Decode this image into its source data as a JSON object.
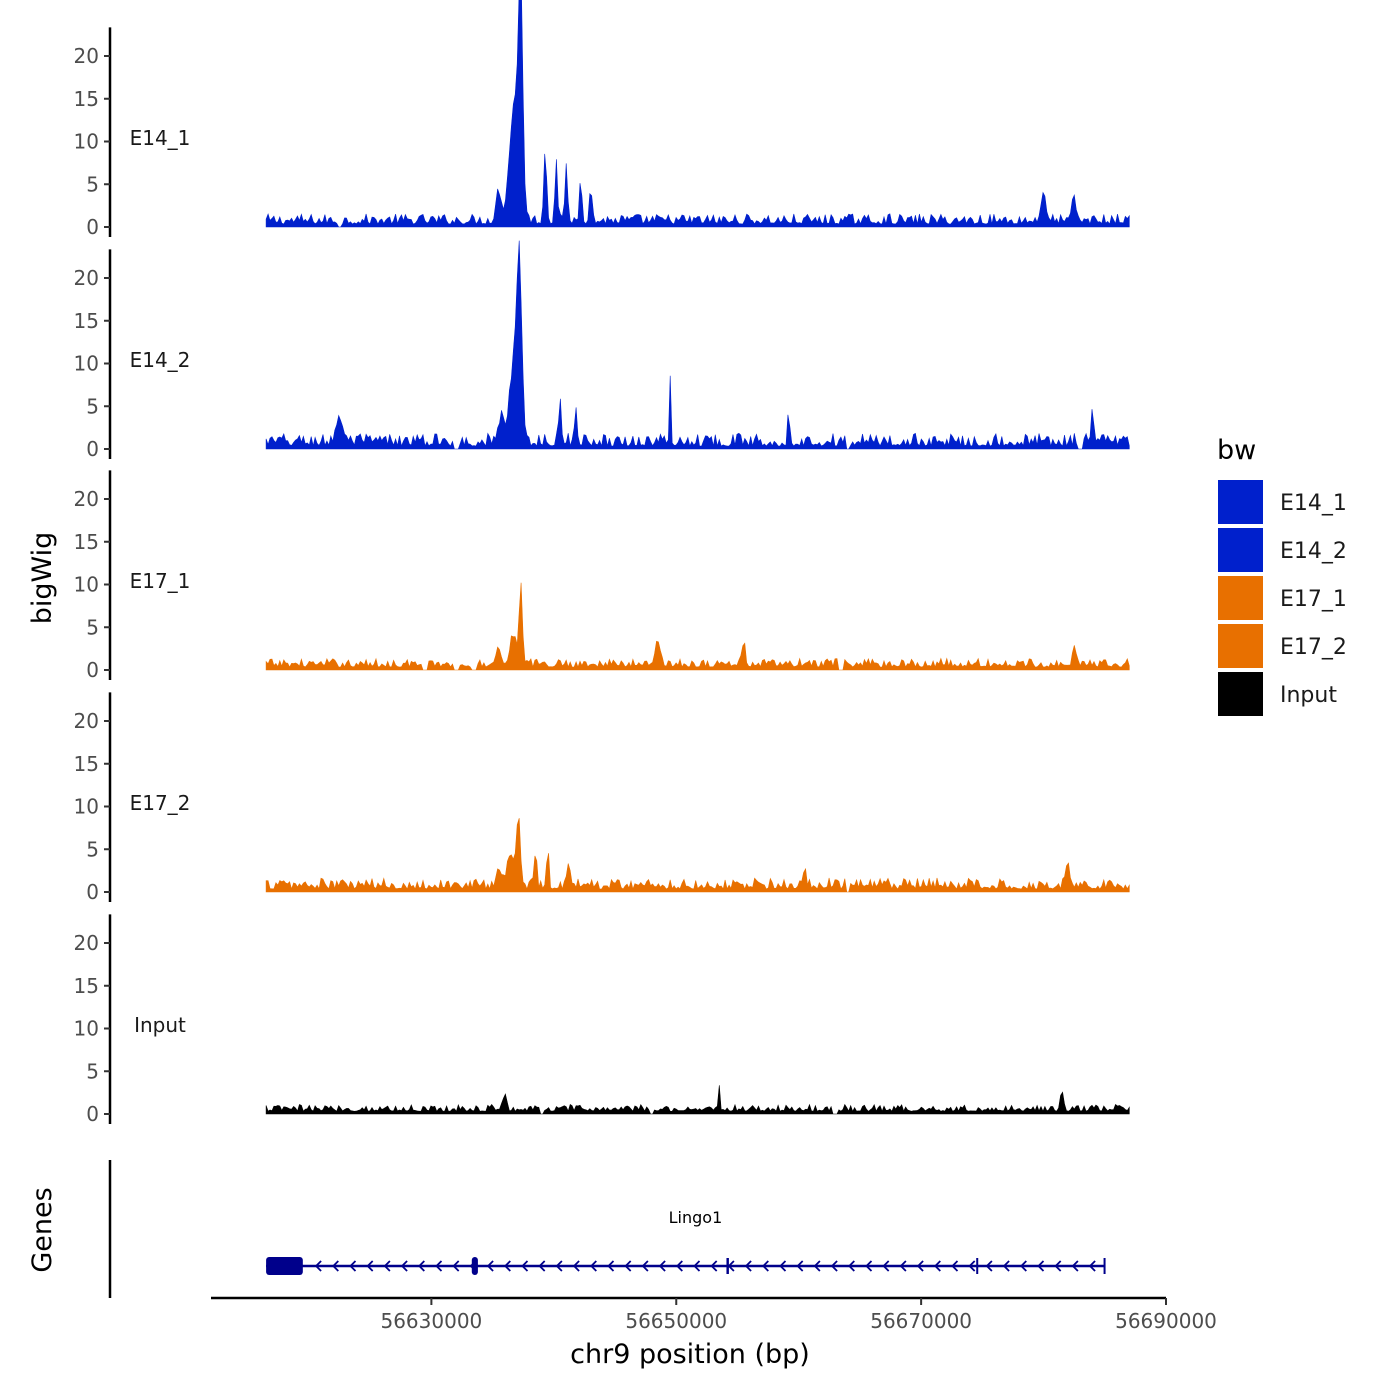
{
  "chart_data": {
    "type": "area",
    "title": "",
    "xlabel": "chr9 position (bp)",
    "ylabel": "bigWig",
    "genes_axis_label": "Genes",
    "xlim": [
      56612000,
      56690000
    ],
    "x_ticks": [
      56630000,
      56650000,
      56670000,
      56690000
    ],
    "x_tick_labels": [
      "56630000",
      "56650000",
      "56670000",
      "56690000"
    ],
    "data_range": [
      56616500,
      56687000
    ],
    "ylim": [
      0,
      23
    ],
    "y_ticks": [
      0,
      5,
      10,
      15,
      20
    ],
    "y_tick_labels": [
      "0",
      "5",
      "10",
      "15",
      "20"
    ],
    "legend": {
      "title": "bw",
      "position": "right",
      "entries": [
        {
          "label": "E14_1",
          "color": "#0020CC"
        },
        {
          "label": "E14_2",
          "color": "#0020CC"
        },
        {
          "label": "E17_1",
          "color": "#E87000"
        },
        {
          "label": "E17_2",
          "color": "#E87000"
        },
        {
          "label": "Input",
          "color": "#000000"
        }
      ]
    },
    "series": [
      {
        "name": "E14_1",
        "color": "#0020CC",
        "baseline": 1.0,
        "noise": 1.2,
        "gaps": [
          56622500
        ],
        "peaks": [
          {
            "x": 56637300,
            "y": 22.0,
            "w": 220
          },
          {
            "x": 56637000,
            "y": 12.5,
            "w": 500
          },
          {
            "x": 56636500,
            "y": 6.0,
            "w": 450
          },
          {
            "x": 56635500,
            "y": 3.5,
            "w": 300
          },
          {
            "x": 56639300,
            "y": 9.0,
            "w": 150
          },
          {
            "x": 56640200,
            "y": 7.5,
            "w": 150
          },
          {
            "x": 56641000,
            "y": 6.0,
            "w": 150
          },
          {
            "x": 56642200,
            "y": 5.0,
            "w": 150
          },
          {
            "x": 56643000,
            "y": 4.0,
            "w": 150
          },
          {
            "x": 56680000,
            "y": 3.8,
            "w": 250
          },
          {
            "x": 56682500,
            "y": 2.5,
            "w": 250
          }
        ]
      },
      {
        "name": "E14_2",
        "color": "#0020CC",
        "baseline": 1.0,
        "noise": 1.5,
        "gaps": [
          56632000,
          56664000,
          56683000
        ],
        "peaks": [
          {
            "x": 56637200,
            "y": 16.5,
            "w": 260
          },
          {
            "x": 56636800,
            "y": 10.0,
            "w": 550
          },
          {
            "x": 56635700,
            "y": 3.0,
            "w": 300
          },
          {
            "x": 56622500,
            "y": 3.0,
            "w": 400
          },
          {
            "x": 56640500,
            "y": 4.5,
            "w": 150
          },
          {
            "x": 56641800,
            "y": 4.5,
            "w": 150
          },
          {
            "x": 56649500,
            "y": 7.5,
            "w": 90
          },
          {
            "x": 56659200,
            "y": 5.0,
            "w": 90
          },
          {
            "x": 56684000,
            "y": 4.0,
            "w": 150
          }
        ]
      },
      {
        "name": "E17_1",
        "color": "#E87000",
        "baseline": 1.0,
        "noise": 1.0,
        "gaps": [
          56629500,
          56632000,
          56633500,
          56663500
        ],
        "peaks": [
          {
            "x": 56637300,
            "y": 9.0,
            "w": 180
          },
          {
            "x": 56636700,
            "y": 3.5,
            "w": 400
          },
          {
            "x": 56635500,
            "y": 2.0,
            "w": 300
          },
          {
            "x": 56648500,
            "y": 3.0,
            "w": 300
          },
          {
            "x": 56655500,
            "y": 2.5,
            "w": 200
          },
          {
            "x": 56682500,
            "y": 2.5,
            "w": 200
          }
        ]
      },
      {
        "name": "E17_2",
        "color": "#E87000",
        "baseline": 1.0,
        "noise": 1.3,
        "gaps": [
          56664000
        ],
        "peaks": [
          {
            "x": 56637100,
            "y": 7.5,
            "w": 220
          },
          {
            "x": 56636500,
            "y": 3.5,
            "w": 450
          },
          {
            "x": 56635500,
            "y": 2.0,
            "w": 300
          },
          {
            "x": 56638500,
            "y": 4.0,
            "w": 150
          },
          {
            "x": 56639500,
            "y": 4.5,
            "w": 120
          },
          {
            "x": 56641200,
            "y": 3.0,
            "w": 200
          },
          {
            "x": 56660500,
            "y": 3.0,
            "w": 90
          },
          {
            "x": 56682000,
            "y": 3.0,
            "w": 200
          }
        ]
      },
      {
        "name": "Input",
        "color": "#000000",
        "baseline": 0.9,
        "noise": 0.8,
        "gaps": [
          56639000,
          56648000,
          56663000
        ],
        "peaks": [
          {
            "x": 56653500,
            "y": 3.0,
            "w": 100
          },
          {
            "x": 56636000,
            "y": 2.0,
            "w": 200
          },
          {
            "x": 56681500,
            "y": 2.2,
            "w": 200
          }
        ]
      }
    ],
    "gene_track": {
      "gene": "Lingo1",
      "color": "#00008B",
      "strand": "-",
      "start": 56616500,
      "end": 56685000,
      "exons": [
        {
          "start": 56616500,
          "end": 56619500,
          "thick": true
        },
        {
          "start": 56633300,
          "end": 56633800,
          "thick": true
        },
        {
          "start": 56654100,
          "end": 56654300,
          "thick": false
        },
        {
          "start": 56674500,
          "end": 56674600,
          "thick": false
        },
        {
          "start": 56684900,
          "end": 56685000,
          "thick": false
        }
      ]
    }
  }
}
